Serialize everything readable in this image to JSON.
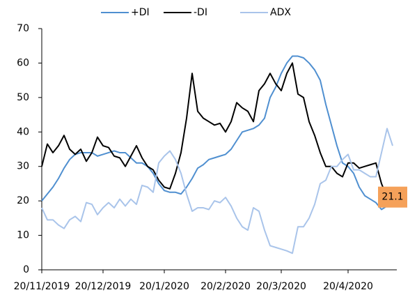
{
  "chart_data": {
    "type": "line",
    "categories": [
      "20/11/2019",
      null,
      null,
      null,
      null,
      null,
      null,
      null,
      null,
      null,
      null,
      "20/12/2019",
      null,
      null,
      null,
      null,
      null,
      null,
      null,
      null,
      null,
      null,
      "20/1/2020",
      null,
      null,
      null,
      null,
      null,
      null,
      null,
      null,
      null,
      null,
      "20/2/2020",
      null,
      null,
      null,
      null,
      null,
      null,
      null,
      null,
      null,
      "20/3/2020",
      null,
      null,
      null,
      null,
      null,
      null,
      null,
      null,
      null,
      null,
      null,
      "20/4/2020",
      null,
      null,
      null,
      null,
      null,
      null,
      null,
      null
    ],
    "series": [
      {
        "name": "+DI",
        "color": "#4f8fd0",
        "values": [
          20,
          22,
          24,
          26.5,
          29.5,
          32,
          33.5,
          34,
          34,
          34,
          33,
          33.5,
          34,
          34.5,
          34,
          34,
          32.5,
          31,
          31,
          30,
          28,
          25,
          23,
          22.5,
          22.5,
          22,
          24,
          26.5,
          29.5,
          30.5,
          32,
          32.5,
          33,
          33.5,
          35,
          37.5,
          40,
          40.5,
          41,
          42,
          44,
          50,
          53,
          57,
          60,
          62,
          62,
          61.5,
          60,
          58,
          55,
          48,
          42,
          36,
          31,
          30,
          28,
          24,
          21.5,
          20.5,
          19.5,
          17.5,
          18.5,
          20
        ]
      },
      {
        "name": "-DI",
        "color": "#000000",
        "values": [
          30,
          36.5,
          34,
          36,
          39,
          35,
          33.5,
          35,
          31.5,
          34,
          38.5,
          36,
          35.5,
          33,
          32.5,
          30,
          33,
          36,
          32.5,
          30,
          29,
          26,
          24,
          23.5,
          28,
          34,
          44,
          57,
          46,
          44,
          43,
          42,
          42.5,
          40,
          43,
          48.5,
          47,
          46,
          43,
          52,
          54,
          57,
          54,
          52,
          57,
          60,
          51,
          50,
          43,
          39,
          34,
          30,
          30,
          28,
          27,
          31,
          31,
          29.5,
          30,
          30.5,
          31,
          25,
          21,
          21.1
        ],
        "value_labels": [
          null,
          null,
          null,
          null,
          null,
          null,
          null,
          null,
          null,
          null,
          null,
          null,
          null,
          null,
          null,
          null,
          null,
          null,
          null,
          null,
          null,
          null,
          null,
          null,
          null,
          null,
          null,
          null,
          null,
          null,
          null,
          null,
          null,
          null,
          null,
          null,
          null,
          null,
          null,
          null,
          null,
          null,
          null,
          null,
          null,
          null,
          null,
          null,
          null,
          null,
          null,
          null,
          null,
          null,
          null,
          null,
          null,
          null,
          null,
          null,
          null,
          null,
          null,
          "21.1"
        ]
      },
      {
        "name": "ADX",
        "color": "#a9c4ea",
        "values": [
          18,
          14.5,
          14.5,
          13,
          12,
          14.5,
          15.5,
          14,
          19.5,
          19,
          16,
          18,
          19.5,
          18,
          20.5,
          18.5,
          20.5,
          19,
          24.5,
          24,
          22.5,
          31,
          33,
          34.5,
          32,
          28,
          22,
          17,
          18,
          18,
          17.5,
          20,
          19.5,
          21,
          18.5,
          15,
          12.5,
          11.5,
          18,
          17,
          11.5,
          7,
          6.5,
          6,
          5.5,
          4.8,
          12.5,
          12.5,
          15,
          19,
          25,
          26,
          30,
          30,
          32,
          33.5,
          29,
          29,
          28,
          27,
          27,
          34,
          41,
          36
        ]
      }
    ],
    "ylim": [
      0,
      70
    ],
    "yticks": [
      0,
      10,
      20,
      30,
      40,
      50,
      60,
      70
    ],
    "grid": false,
    "legend": "top"
  }
}
